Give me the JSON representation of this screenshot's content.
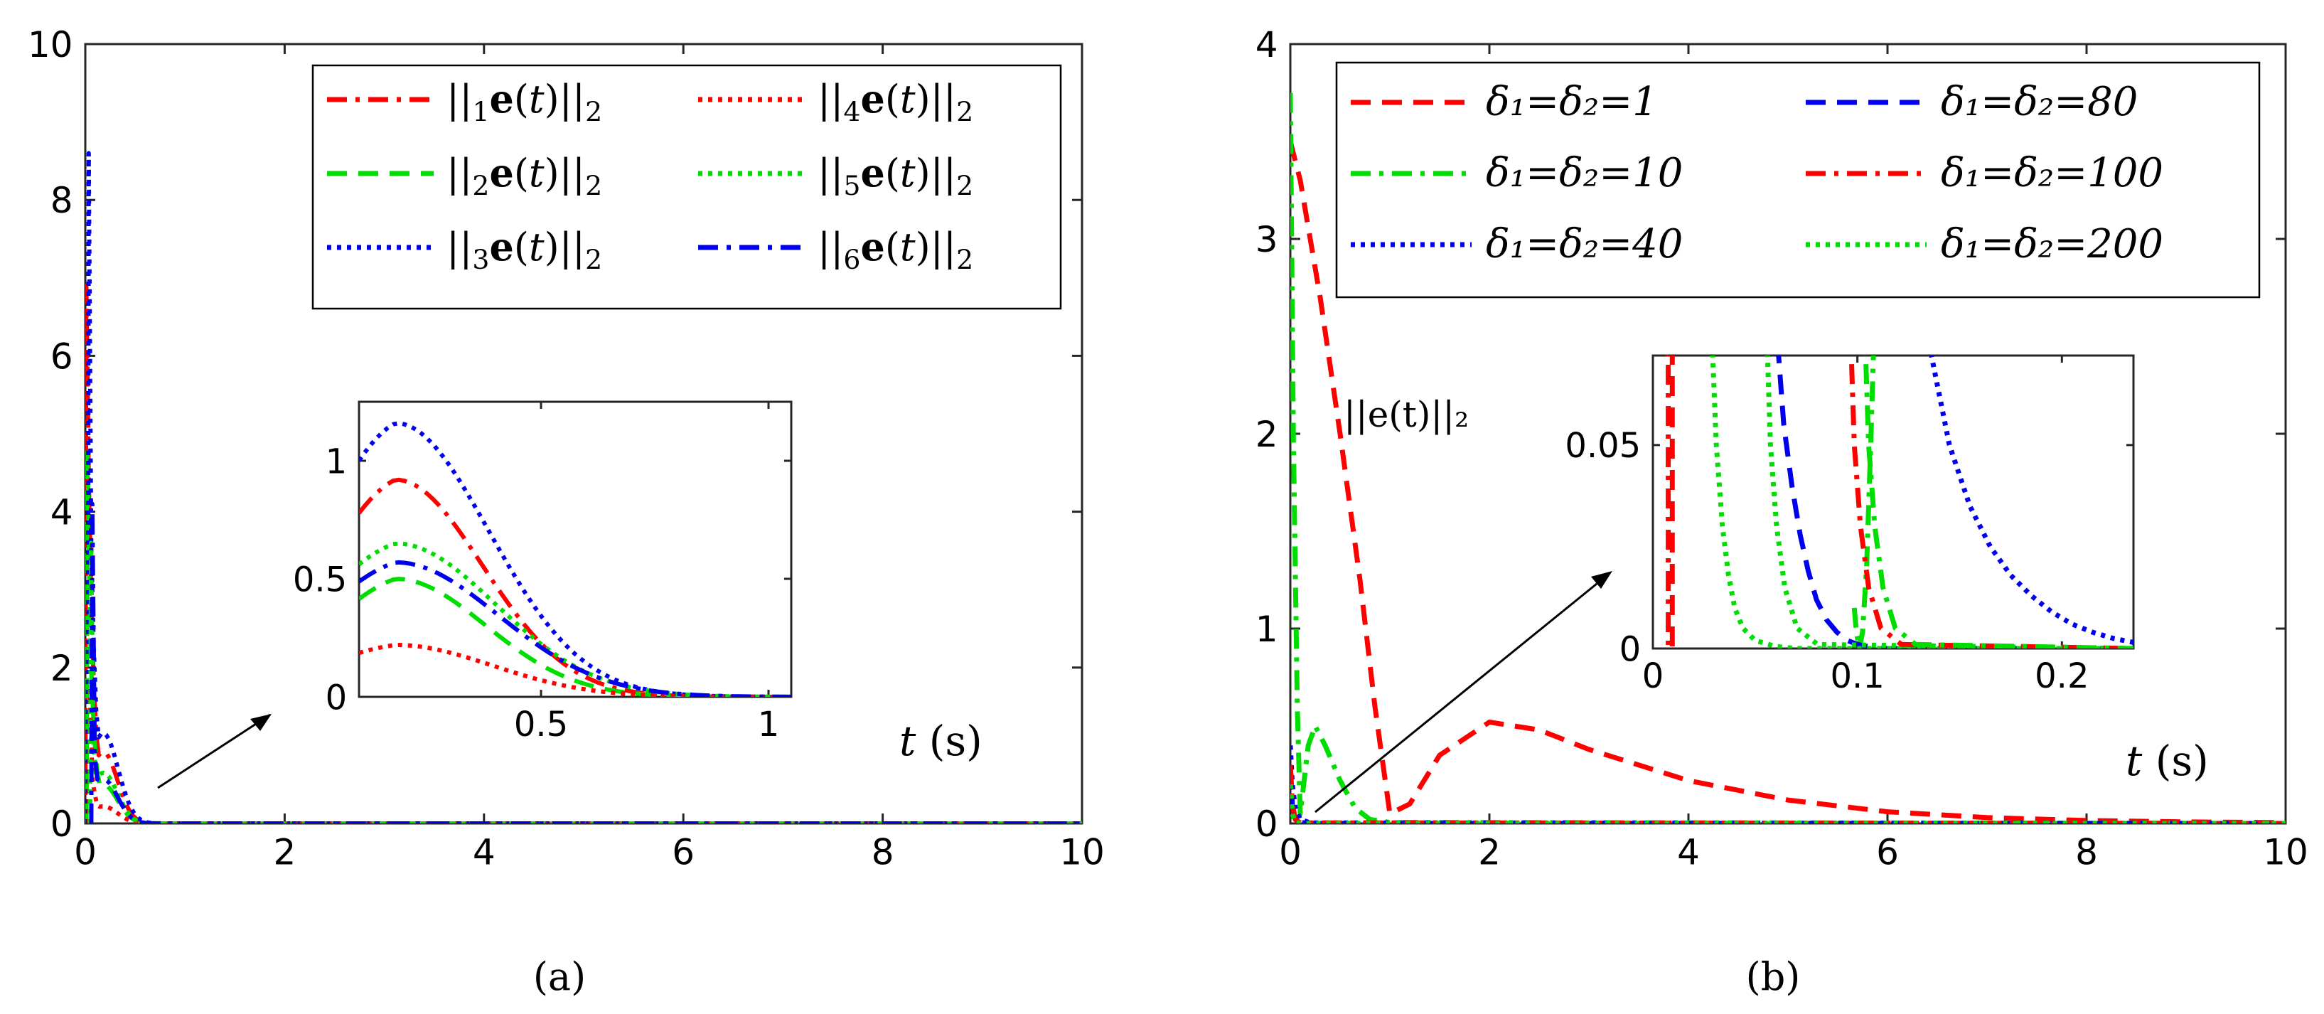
{
  "figure": {
    "caption_a": "(a)",
    "caption_b": "(b)"
  },
  "colors": {
    "red": "#ff0000",
    "green": "#00dd00",
    "blue": "#0000ee",
    "axis": "#262626"
  },
  "chart_data": [
    {
      "type": "line",
      "panel": "a",
      "xlim": [
        0,
        10
      ],
      "ylim": [
        0,
        10
      ],
      "xticks": [
        "0",
        "2",
        "4",
        "6",
        "8",
        "10"
      ],
      "yticks": [
        "0",
        "2",
        "4",
        "6",
        "8",
        "10"
      ],
      "grid": false,
      "legend_position": "top-right",
      "series": [
        {
          "name": "||₁e(t)||₂",
          "color": "red",
          "style": "dashdot",
          "peak": 6.9,
          "inset_start": 0.85,
          "inset_peak": 0.92,
          "decay": 0.2
        },
        {
          "name": "||₂e(t)||₂",
          "color": "green",
          "style": "dashed",
          "peak": 4.8,
          "inset_start": 0.45,
          "inset_peak": 0.5,
          "decay": 0.2
        },
        {
          "name": "||₃e(t)||₂",
          "color": "blue",
          "style": "dotted",
          "peak": 8.6,
          "inset_start": 1.08,
          "inset_peak": 1.16,
          "decay": 0.21
        },
        {
          "name": "||₄e(t)||₂",
          "color": "red",
          "style": "dotted",
          "peak": 1.7,
          "inset_start": 0.2,
          "inset_peak": 0.22,
          "decay": 0.2
        },
        {
          "name": "||₅e(t)||₂",
          "color": "green",
          "style": "dotted",
          "peak": 3.6,
          "inset_start": 0.6,
          "inset_peak": 0.65,
          "decay": 0.2
        },
        {
          "name": "||₆e(t)||₂",
          "color": "blue",
          "style": "dashdot",
          "peak": 4.1,
          "inset_start": 0.52,
          "inset_peak": 0.57,
          "decay": 0.2
        }
      ],
      "inset": {
        "xlim": [
          0.1,
          1.05
        ],
        "ylim": [
          0,
          1.25
        ],
        "xticks": [
          "0.5",
          "1"
        ],
        "yticks": [
          "0",
          "0.5",
          "1"
        ],
        "xlabel_var": "t",
        "xlabel_unit": "(s)"
      }
    },
    {
      "type": "line",
      "panel": "b",
      "xlim": [
        0,
        10
      ],
      "ylim": [
        0,
        4
      ],
      "xticks": [
        "0",
        "2",
        "4",
        "6",
        "8",
        "10"
      ],
      "yticks": [
        "0",
        "1",
        "2",
        "3",
        "4"
      ],
      "grid": false,
      "legend_position": "top",
      "annotation": "||e(t)||₂",
      "series": [
        {
          "name": "δ₁=δ₂=1",
          "color": "red",
          "style": "dashed",
          "points": [
            [
              0,
              3.5
            ],
            [
              0.1,
              3.3
            ],
            [
              0.3,
              2.7
            ],
            [
              0.5,
              2.0
            ],
            [
              0.7,
              1.25
            ],
            [
              0.85,
              0.6
            ],
            [
              1.0,
              0.05
            ],
            [
              1.2,
              0.1
            ],
            [
              1.5,
              0.35
            ],
            [
              2.0,
              0.52
            ],
            [
              2.5,
              0.48
            ],
            [
              3.0,
              0.38
            ],
            [
              4.0,
              0.22
            ],
            [
              5.0,
              0.12
            ],
            [
              6.0,
              0.06
            ],
            [
              7.0,
              0.03
            ],
            [
              8.0,
              0.015
            ],
            [
              9.0,
              0.008
            ],
            [
              10.0,
              0.004
            ]
          ]
        },
        {
          "name": "δ₁=δ₂=10",
          "color": "green",
          "style": "dashdot",
          "points": [
            [
              0,
              3.75
            ],
            [
              0.03,
              2.0
            ],
            [
              0.07,
              0.6
            ],
            [
              0.1,
              0.05
            ],
            [
              0.18,
              0.4
            ],
            [
              0.25,
              0.5
            ],
            [
              0.35,
              0.4
            ],
            [
              0.5,
              0.22
            ],
            [
              0.65,
              0.08
            ],
            [
              0.8,
              0.02
            ],
            [
              1.0,
              0.005
            ],
            [
              10,
              0
            ]
          ]
        },
        {
          "name": "δ₁=δ₂=40",
          "color": "blue",
          "style": "dotted",
          "points": [
            [
              0,
              0.4
            ],
            [
              0.02,
              0.2
            ],
            [
              0.05,
              0.08
            ],
            [
              0.1,
              0.02
            ],
            [
              0.2,
              0.003
            ],
            [
              10,
              0
            ]
          ]
        },
        {
          "name": "δ₁=δ₂=80",
          "color": "blue",
          "style": "dashed",
          "points": [
            [
              0,
              0.3
            ],
            [
              0.02,
              0.1
            ],
            [
              0.05,
              0.02
            ],
            [
              0.1,
              0.005
            ],
            [
              0.2,
              0
            ],
            [
              10,
              0
            ]
          ]
        },
        {
          "name": "δ₁=δ₂=100",
          "color": "red",
          "style": "dashdot",
          "points": [
            [
              0,
              0.3
            ],
            [
              0.02,
              0.1
            ],
            [
              0.05,
              0.02
            ],
            [
              0.1,
              0.003
            ],
            [
              10,
              0
            ]
          ]
        },
        {
          "name": "δ₁=δ₂=200",
          "color": "green",
          "style": "dotted",
          "points": [
            [
              0,
              0.2
            ],
            [
              0.02,
              0.05
            ],
            [
              0.05,
              0.005
            ],
            [
              0.1,
              0
            ],
            [
              10,
              0
            ]
          ]
        }
      ],
      "inset": {
        "xlim": [
          0,
          0.235
        ],
        "ylim": [
          0,
          0.072
        ],
        "xticks": [
          "0",
          "0.1",
          "0.2"
        ],
        "yticks": [
          "0",
          "0.05"
        ],
        "xlabel_var": "t",
        "xlabel_unit": "(s)",
        "series": [
          {
            "name": "δ₁=δ₂=1",
            "points": [
              [
                0.0095,
                0.09
              ],
              [
                0.0095,
                0
              ]
            ]
          },
          {
            "name": "δ₁=δ₂=10",
            "points": [
              [
                0.0985,
                0.01
              ],
              [
                0.0995,
                0.004
              ],
              [
                0.101,
                0.0
              ],
              [
                0.1025,
                0.004
              ],
              [
                0.1045,
                0.02
              ],
              [
                0.1065,
                0.05
              ],
              [
                0.108,
                0.075
              ]
            ]
          },
          {
            "name": "δ₁=δ₂=40",
            "points": [
              [
                0.135,
                0.075
              ],
              [
                0.145,
                0.05
              ],
              [
                0.155,
                0.035
              ],
              [
                0.165,
                0.025
              ],
              [
                0.175,
                0.018
              ],
              [
                0.185,
                0.013
              ],
              [
                0.195,
                0.009
              ],
              [
                0.205,
                0.006
              ],
              [
                0.215,
                0.004
              ],
              [
                0.225,
                0.0025
              ],
              [
                0.235,
                0.0015
              ]
            ]
          },
          {
            "name": "δ₁=δ₂=80",
            "points": [
              [
                0.061,
                0.075
              ],
              [
                0.064,
                0.055
              ],
              [
                0.068,
                0.04
              ],
              [
                0.072,
                0.028
              ],
              [
                0.076,
                0.019
              ],
              [
                0.08,
                0.012
              ],
              [
                0.085,
                0.007
              ],
              [
                0.09,
                0.004
              ],
              [
                0.095,
                0.002
              ],
              [
                0.1,
                0.001
              ],
              [
                0.11,
                0
              ],
              [
                0.235,
                0
              ]
            ]
          },
          {
            "name": "δ₁=δ₂=100",
            "points": [
              [
                0.0075,
                0.09
              ],
              [
                0.0075,
                0
              ]
            ]
          },
          {
            "name": "δ₁=δ₂=200",
            "points": [
              [
                0.029,
                0.075
              ],
              [
                0.031,
                0.05
              ],
              [
                0.034,
                0.03
              ],
              [
                0.037,
                0.018
              ],
              [
                0.04,
                0.01
              ],
              [
                0.044,
                0.005
              ],
              [
                0.05,
                0.002
              ],
              [
                0.06,
                0.0005
              ],
              [
                0.07,
                0
              ],
              [
                0.235,
                0
              ]
            ]
          }
        ],
        "extra_vertical_x": [
          0.0555,
          0.0965,
          0.1035
        ]
      }
    }
  ]
}
